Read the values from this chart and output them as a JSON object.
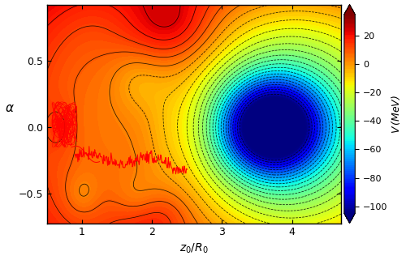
{
  "x_min": 0.5,
  "x_max": 4.7,
  "y_min": -0.72,
  "y_max": 0.92,
  "vmin": -105,
  "vmax": 35,
  "xlabel": "z_0/R_0",
  "ylabel": "α",
  "colorbar_label": "V\\,(MeV)",
  "colorbar_ticks": [
    20,
    0,
    -20,
    -40,
    -60,
    -80,
    -100
  ],
  "n_contour_levels": 28,
  "figsize": [
    5.0,
    3.21
  ],
  "dpi": 100
}
